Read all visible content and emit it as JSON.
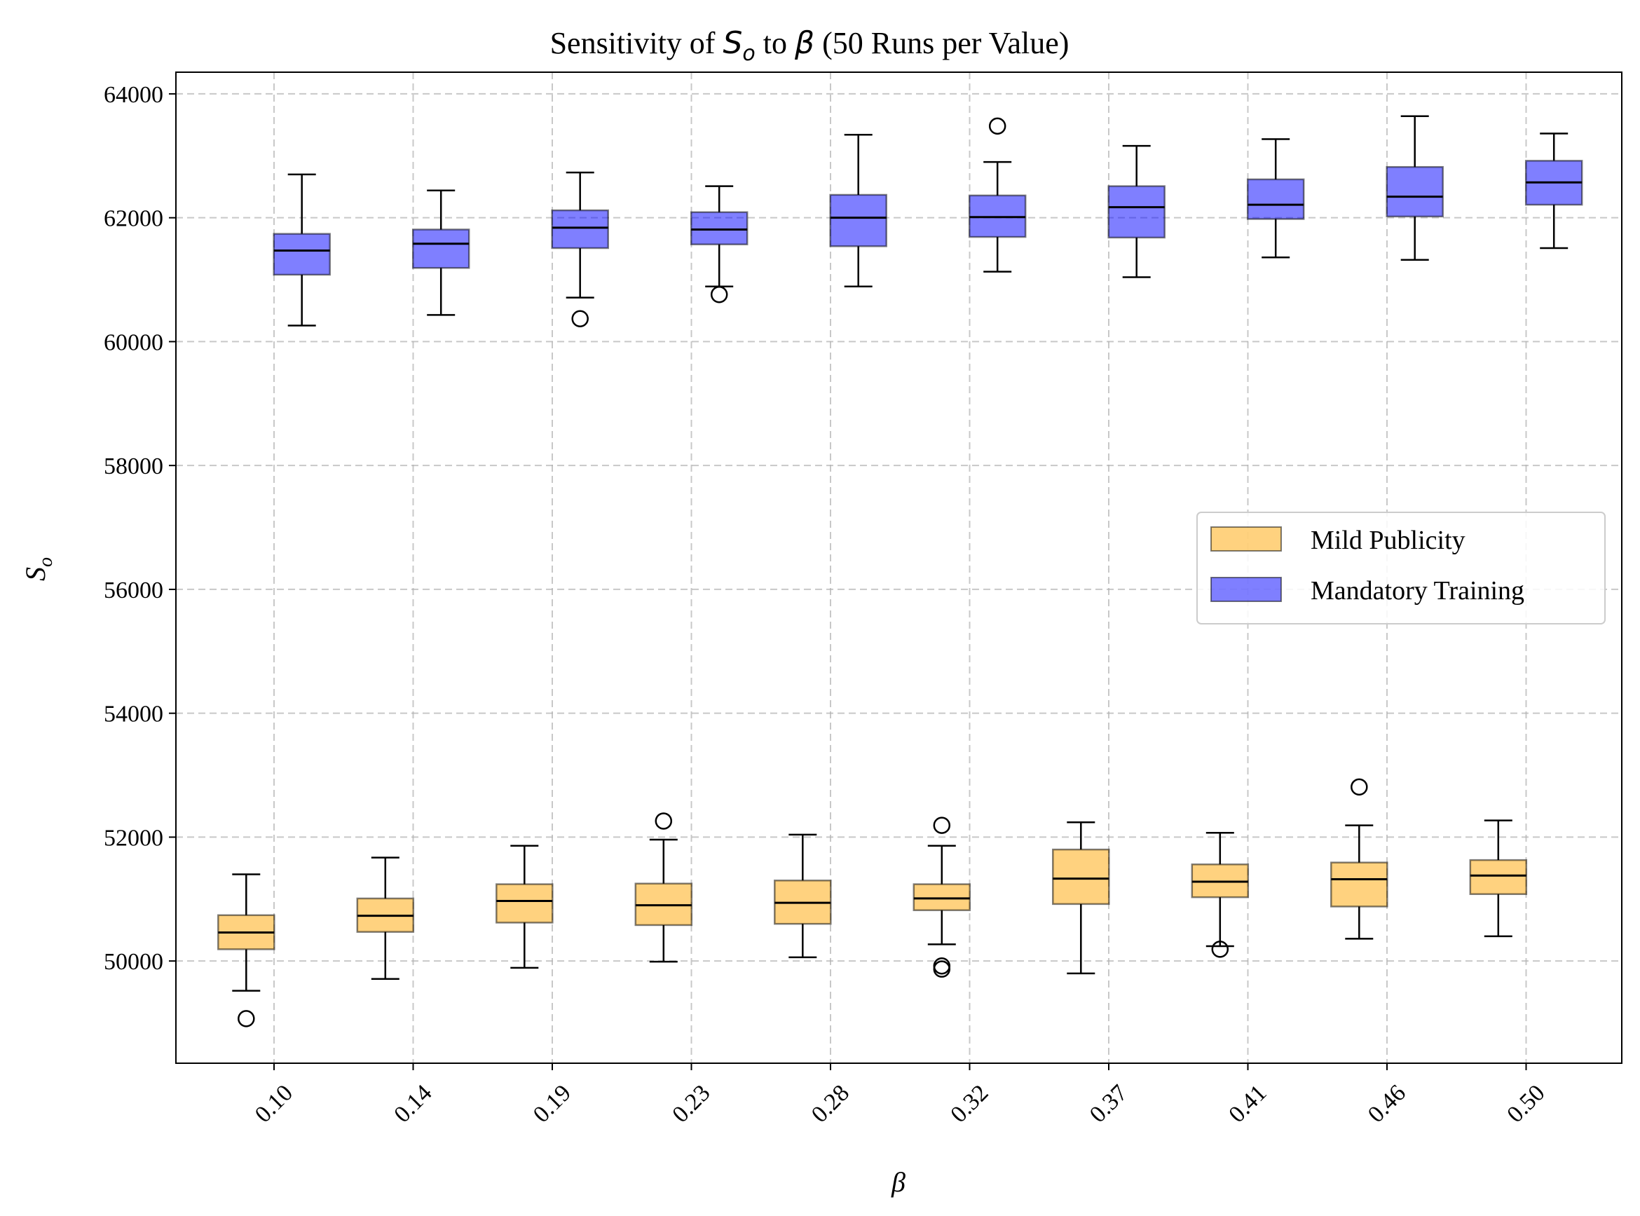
{
  "chart_data": {
    "type": "box",
    "title": {
      "prefix": "Sensitivity of ",
      "sym1": "S",
      "sym1_sub": "o",
      "mid": " to ",
      "sym2": "β",
      "suffix": " (50 Runs per Value)"
    },
    "xlabel": "β",
    "ylabel": {
      "sym": "S",
      "sub": "o"
    },
    "categories": [
      "0.10",
      "0.14",
      "0.19",
      "0.23",
      "0.28",
      "0.32",
      "0.37",
      "0.41",
      "0.46",
      "0.50"
    ],
    "ylim": [
      48350,
      64350
    ],
    "yticks": [
      50000,
      52000,
      54000,
      56000,
      58000,
      60000,
      62000,
      64000
    ],
    "grid": true,
    "legend_position": "center-right",
    "series": [
      {
        "name": "Mild Publicity",
        "color": "#ffa500",
        "offset": -0.2,
        "boxes": [
          {
            "whislo": 49520,
            "q1": 50190,
            "med": 50460,
            "q3": 50740,
            "whishi": 51400,
            "fliers": [
              49070
            ]
          },
          {
            "whislo": 49710,
            "q1": 50470,
            "med": 50730,
            "q3": 51010,
            "whishi": 51670,
            "fliers": []
          },
          {
            "whislo": 49890,
            "q1": 50620,
            "med": 50970,
            "q3": 51240,
            "whishi": 51860,
            "fliers": []
          },
          {
            "whislo": 49990,
            "q1": 50580,
            "med": 50900,
            "q3": 51250,
            "whishi": 51960,
            "fliers": [
              52260
            ]
          },
          {
            "whislo": 50060,
            "q1": 50600,
            "med": 50940,
            "q3": 51300,
            "whishi": 52040,
            "fliers": []
          },
          {
            "whislo": 50270,
            "q1": 50820,
            "med": 51010,
            "q3": 51240,
            "whishi": 51860,
            "fliers": [
              52190,
              49920,
              49870
            ]
          },
          {
            "whislo": 49800,
            "q1": 50920,
            "med": 51330,
            "q3": 51800,
            "whishi": 52240,
            "fliers": []
          },
          {
            "whislo": 50240,
            "q1": 51030,
            "med": 51280,
            "q3": 51560,
            "whishi": 52070,
            "fliers": [
              50190
            ]
          },
          {
            "whislo": 50360,
            "q1": 50880,
            "med": 51320,
            "q3": 51590,
            "whishi": 52190,
            "fliers": [
              52810
            ]
          },
          {
            "whislo": 50400,
            "q1": 51080,
            "med": 51380,
            "q3": 51630,
            "whishi": 52270,
            "fliers": []
          }
        ]
      },
      {
        "name": "Mandatory Training",
        "color": "#0000ff",
        "offset": 0.2,
        "boxes": [
          {
            "whislo": 60260,
            "q1": 61080,
            "med": 61470,
            "q3": 61740,
            "whishi": 62700,
            "fliers": []
          },
          {
            "whislo": 60430,
            "q1": 61190,
            "med": 61580,
            "q3": 61810,
            "whishi": 62440,
            "fliers": []
          },
          {
            "whislo": 60710,
            "q1": 61510,
            "med": 61840,
            "q3": 62120,
            "whishi": 62730,
            "fliers": [
              60370
            ]
          },
          {
            "whislo": 60890,
            "q1": 61570,
            "med": 61810,
            "q3": 62090,
            "whishi": 62510,
            "fliers": [
              60760
            ]
          },
          {
            "whislo": 60890,
            "q1": 61540,
            "med": 62000,
            "q3": 62370,
            "whishi": 63340,
            "fliers": []
          },
          {
            "whislo": 61130,
            "q1": 61690,
            "med": 62010,
            "q3": 62360,
            "whishi": 62900,
            "fliers": [
              63480
            ]
          },
          {
            "whislo": 61040,
            "q1": 61680,
            "med": 62170,
            "q3": 62510,
            "whishi": 63160,
            "fliers": []
          },
          {
            "whislo": 61360,
            "q1": 61980,
            "med": 62210,
            "q3": 62620,
            "whishi": 63270,
            "fliers": []
          },
          {
            "whislo": 61320,
            "q1": 62020,
            "med": 62340,
            "q3": 62820,
            "whishi": 63640,
            "fliers": []
          },
          {
            "whislo": 61510,
            "q1": 62210,
            "med": 62570,
            "q3": 62920,
            "whishi": 63360,
            "fliers": []
          }
        ]
      }
    ]
  }
}
